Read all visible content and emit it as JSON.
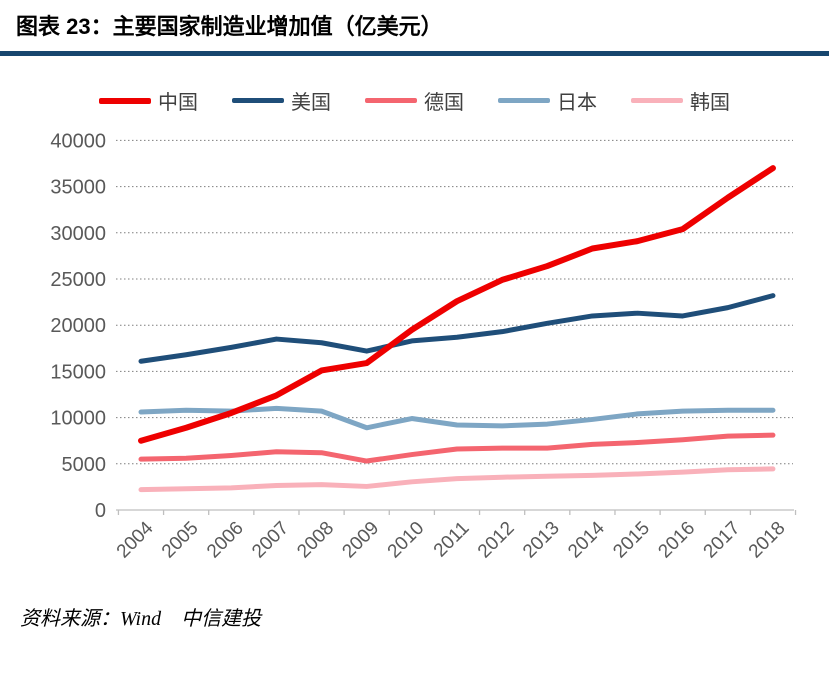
{
  "header": {
    "title": "图表 23：主要国家制造业增加值（亿美元）",
    "accent_color": "#17466e"
  },
  "chart_data": {
    "type": "line",
    "title": "主要国家制造业增加值（亿美元）",
    "unit": "亿美元",
    "x": [
      2004,
      2005,
      2006,
      2007,
      2008,
      2009,
      2010,
      2011,
      2012,
      2013,
      2014,
      2015,
      2016,
      2017,
      2018
    ],
    "xlabel": "",
    "ylabel": "",
    "ylim": [
      0,
      40000
    ],
    "y_ticks": [
      0,
      5000,
      10000,
      15000,
      20000,
      25000,
      30000,
      35000,
      40000
    ],
    "grid": "horizontal-dotted",
    "legend_position": "top",
    "axis_text_color": "#595959",
    "series": [
      {
        "id": "china",
        "name": "中国",
        "color": "#ee0000",
        "values": [
          7500,
          8900,
          10500,
          12400,
          15100,
          15900,
          19500,
          22600,
          24900,
          26400,
          28300,
          29100,
          30400,
          33800,
          37000
        ]
      },
      {
        "id": "usa",
        "name": "美国",
        "color": "#1f4e79",
        "values": [
          16100,
          16800,
          17600,
          18500,
          18100,
          17200,
          18300,
          18700,
          19300,
          20200,
          21000,
          21300,
          21000,
          21900,
          23200
        ]
      },
      {
        "id": "germany",
        "name": "德国",
        "color": "#f4656f",
        "values": [
          5500,
          5600,
          5900,
          6300,
          6200,
          5300,
          6000,
          6600,
          6700,
          6700,
          7100,
          7300,
          7600,
          8000,
          8100
        ]
      },
      {
        "id": "japan",
        "name": "日本",
        "color": "#7ea6c4",
        "values": [
          10600,
          10800,
          10700,
          11000,
          10700,
          8900,
          9900,
          9200,
          9100,
          9300,
          9800,
          10400,
          10700,
          10800,
          10800
        ]
      },
      {
        "id": "korea",
        "name": "韩国",
        "color": "#f9b1ba",
        "values": [
          2200,
          2300,
          2400,
          2650,
          2750,
          2550,
          3050,
          3400,
          3550,
          3650,
          3750,
          3900,
          4100,
          4350,
          4450
        ]
      }
    ]
  },
  "footer": {
    "source": "资料来源：Wind　中信建投"
  }
}
